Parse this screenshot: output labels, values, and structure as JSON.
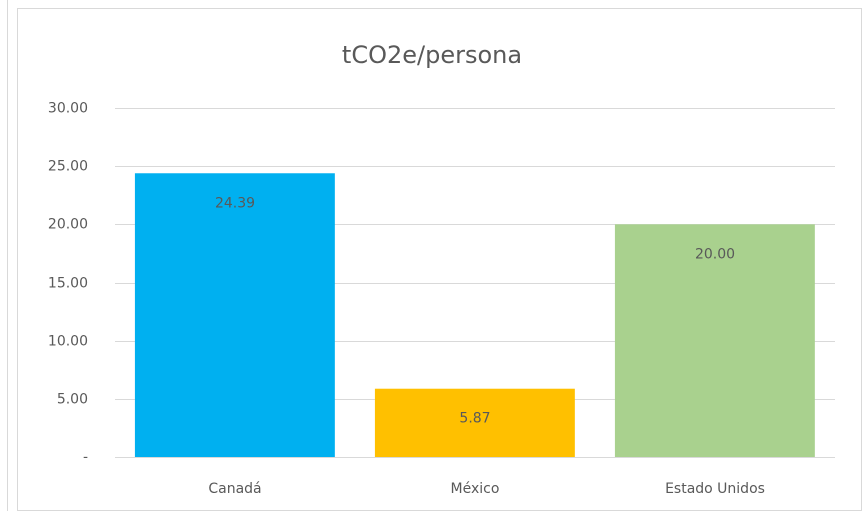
{
  "chart_data": {
    "type": "bar",
    "title": "tCO2e/persona",
    "categories": [
      "Canadá",
      "México",
      "Estado Unidos"
    ],
    "values": [
      24.39,
      5.87,
      20
    ],
    "value_labels": [
      "24.39",
      "5.87",
      "20.00"
    ],
    "colors": [
      "#00b0f0",
      "#ffc000",
      "#a9d18e"
    ],
    "ylim": [
      0,
      30
    ],
    "yticks": [
      {
        "value": 0,
        "label": "-"
      },
      {
        "value": 5,
        "label": "5.00"
      },
      {
        "value": 10,
        "label": "10.00"
      },
      {
        "value": 15,
        "label": "15.00"
      },
      {
        "value": 20,
        "label": "20.00"
      },
      {
        "value": 25,
        "label": "25.00"
      },
      {
        "value": 30,
        "label": "30.00"
      }
    ],
    "grid": true
  }
}
